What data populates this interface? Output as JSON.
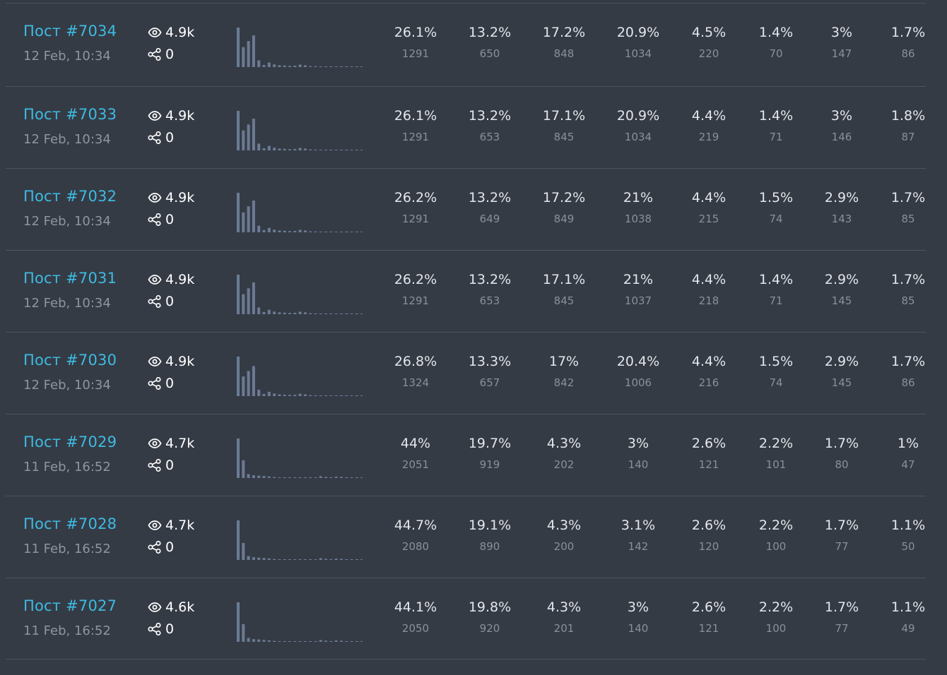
{
  "colors": {
    "background": "#353b45",
    "divider": "#4c5360",
    "link": "#3dbbe2",
    "muted": "#8f959e",
    "bar": "#6b7b94"
  },
  "icons": {
    "views": "eye-icon",
    "shares": "share-icon"
  },
  "posts": [
    {
      "title": "Пост #7034",
      "date": "12 Feb, 10:34",
      "views": "4.9k",
      "shares": "0",
      "stats": [
        {
          "pct": "26.1%",
          "count": "1291"
        },
        {
          "pct": "13.2%",
          "count": "650"
        },
        {
          "pct": "17.2%",
          "count": "848"
        },
        {
          "pct": "20.9%",
          "count": "1034"
        },
        {
          "pct": "4.5%",
          "count": "220"
        },
        {
          "pct": "1.4%",
          "count": "70"
        },
        {
          "pct": "3%",
          "count": "147"
        },
        {
          "pct": "1.7%",
          "count": "86"
        }
      ],
      "histogram": [
        1291,
        650,
        848,
        1034,
        220,
        70,
        147,
        86,
        60,
        50,
        40,
        45,
        80,
        60,
        30,
        25,
        20,
        22,
        18,
        15,
        20,
        25,
        15,
        10
      ]
    },
    {
      "title": "Пост #7033",
      "date": "12 Feb, 10:34",
      "views": "4.9k",
      "shares": "0",
      "stats": [
        {
          "pct": "26.1%",
          "count": "1291"
        },
        {
          "pct": "13.2%",
          "count": "653"
        },
        {
          "pct": "17.1%",
          "count": "845"
        },
        {
          "pct": "20.9%",
          "count": "1034"
        },
        {
          "pct": "4.4%",
          "count": "219"
        },
        {
          "pct": "1.4%",
          "count": "71"
        },
        {
          "pct": "3%",
          "count": "146"
        },
        {
          "pct": "1.8%",
          "count": "87"
        }
      ],
      "histogram": [
        1291,
        653,
        845,
        1034,
        219,
        71,
        146,
        87,
        60,
        50,
        40,
        45,
        80,
        60,
        30,
        25,
        20,
        22,
        18,
        15,
        20,
        25,
        15,
        10
      ]
    },
    {
      "title": "Пост #7032",
      "date": "12 Feb, 10:34",
      "views": "4.9k",
      "shares": "0",
      "stats": [
        {
          "pct": "26.2%",
          "count": "1291"
        },
        {
          "pct": "13.2%",
          "count": "649"
        },
        {
          "pct": "17.2%",
          "count": "849"
        },
        {
          "pct": "21%",
          "count": "1038"
        },
        {
          "pct": "4.4%",
          "count": "215"
        },
        {
          "pct": "1.5%",
          "count": "74"
        },
        {
          "pct": "2.9%",
          "count": "143"
        },
        {
          "pct": "1.7%",
          "count": "85"
        }
      ],
      "histogram": [
        1291,
        649,
        849,
        1038,
        215,
        74,
        143,
        85,
        60,
        50,
        40,
        45,
        80,
        60,
        30,
        25,
        20,
        22,
        18,
        15,
        20,
        25,
        15,
        10
      ]
    },
    {
      "title": "Пост #7031",
      "date": "12 Feb, 10:34",
      "views": "4.9k",
      "shares": "0",
      "stats": [
        {
          "pct": "26.2%",
          "count": "1291"
        },
        {
          "pct": "13.2%",
          "count": "653"
        },
        {
          "pct": "17.1%",
          "count": "845"
        },
        {
          "pct": "21%",
          "count": "1037"
        },
        {
          "pct": "4.4%",
          "count": "218"
        },
        {
          "pct": "1.4%",
          "count": "71"
        },
        {
          "pct": "2.9%",
          "count": "145"
        },
        {
          "pct": "1.7%",
          "count": "85"
        }
      ],
      "histogram": [
        1291,
        653,
        845,
        1037,
        218,
        71,
        145,
        85,
        60,
        50,
        40,
        45,
        80,
        60,
        30,
        25,
        20,
        22,
        18,
        15,
        20,
        25,
        15,
        10
      ]
    },
    {
      "title": "Пост #7030",
      "date": "12 Feb, 10:34",
      "views": "4.9k",
      "shares": "0",
      "stats": [
        {
          "pct": "26.8%",
          "count": "1324"
        },
        {
          "pct": "13.3%",
          "count": "657"
        },
        {
          "pct": "17%",
          "count": "842"
        },
        {
          "pct": "20.4%",
          "count": "1006"
        },
        {
          "pct": "4.4%",
          "count": "216"
        },
        {
          "pct": "1.5%",
          "count": "74"
        },
        {
          "pct": "2.9%",
          "count": "145"
        },
        {
          "pct": "1.7%",
          "count": "86"
        }
      ],
      "histogram": [
        1324,
        657,
        842,
        1006,
        216,
        74,
        145,
        86,
        60,
        50,
        40,
        45,
        80,
        60,
        30,
        25,
        20,
        22,
        18,
        15,
        20,
        25,
        15,
        10
      ]
    },
    {
      "title": "Пост #7029",
      "date": "11 Feb, 16:52",
      "views": "4.7k",
      "shares": "0",
      "stats": [
        {
          "pct": "44%",
          "count": "2051"
        },
        {
          "pct": "19.7%",
          "count": "919"
        },
        {
          "pct": "4.3%",
          "count": "202"
        },
        {
          "pct": "3%",
          "count": "140"
        },
        {
          "pct": "2.6%",
          "count": "121"
        },
        {
          "pct": "2.2%",
          "count": "101"
        },
        {
          "pct": "1.7%",
          "count": "80"
        },
        {
          "pct": "1%",
          "count": "47"
        }
      ],
      "histogram": [
        2051,
        919,
        202,
        140,
        121,
        101,
        80,
        47,
        30,
        25,
        20,
        18,
        15,
        20,
        25,
        30,
        90,
        60,
        40,
        70,
        60,
        30,
        20,
        15
      ]
    },
    {
      "title": "Пост #7028",
      "date": "11 Feb, 16:52",
      "views": "4.7k",
      "shares": "0",
      "stats": [
        {
          "pct": "44.7%",
          "count": "2080"
        },
        {
          "pct": "19.1%",
          "count": "890"
        },
        {
          "pct": "4.3%",
          "count": "200"
        },
        {
          "pct": "3.1%",
          "count": "142"
        },
        {
          "pct": "2.6%",
          "count": "120"
        },
        {
          "pct": "2.2%",
          "count": "100"
        },
        {
          "pct": "1.7%",
          "count": "77"
        },
        {
          "pct": "1.1%",
          "count": "50"
        }
      ],
      "histogram": [
        2080,
        890,
        200,
        142,
        120,
        100,
        77,
        50,
        30,
        25,
        20,
        18,
        15,
        20,
        25,
        30,
        90,
        60,
        40,
        70,
        60,
        30,
        20,
        15
      ]
    },
    {
      "title": "Пост #7027",
      "date": "11 Feb, 16:52",
      "views": "4.6k",
      "shares": "0",
      "stats": [
        {
          "pct": "44.1%",
          "count": "2050"
        },
        {
          "pct": "19.8%",
          "count": "920"
        },
        {
          "pct": "4.3%",
          "count": "201"
        },
        {
          "pct": "3%",
          "count": "140"
        },
        {
          "pct": "2.6%",
          "count": "121"
        },
        {
          "pct": "2.2%",
          "count": "100"
        },
        {
          "pct": "1.7%",
          "count": "77"
        },
        {
          "pct": "1.1%",
          "count": "49"
        }
      ],
      "histogram": [
        2050,
        920,
        201,
        140,
        121,
        100,
        77,
        49,
        30,
        25,
        20,
        18,
        15,
        20,
        25,
        30,
        90,
        60,
        40,
        70,
        60,
        30,
        20,
        15
      ]
    }
  ]
}
